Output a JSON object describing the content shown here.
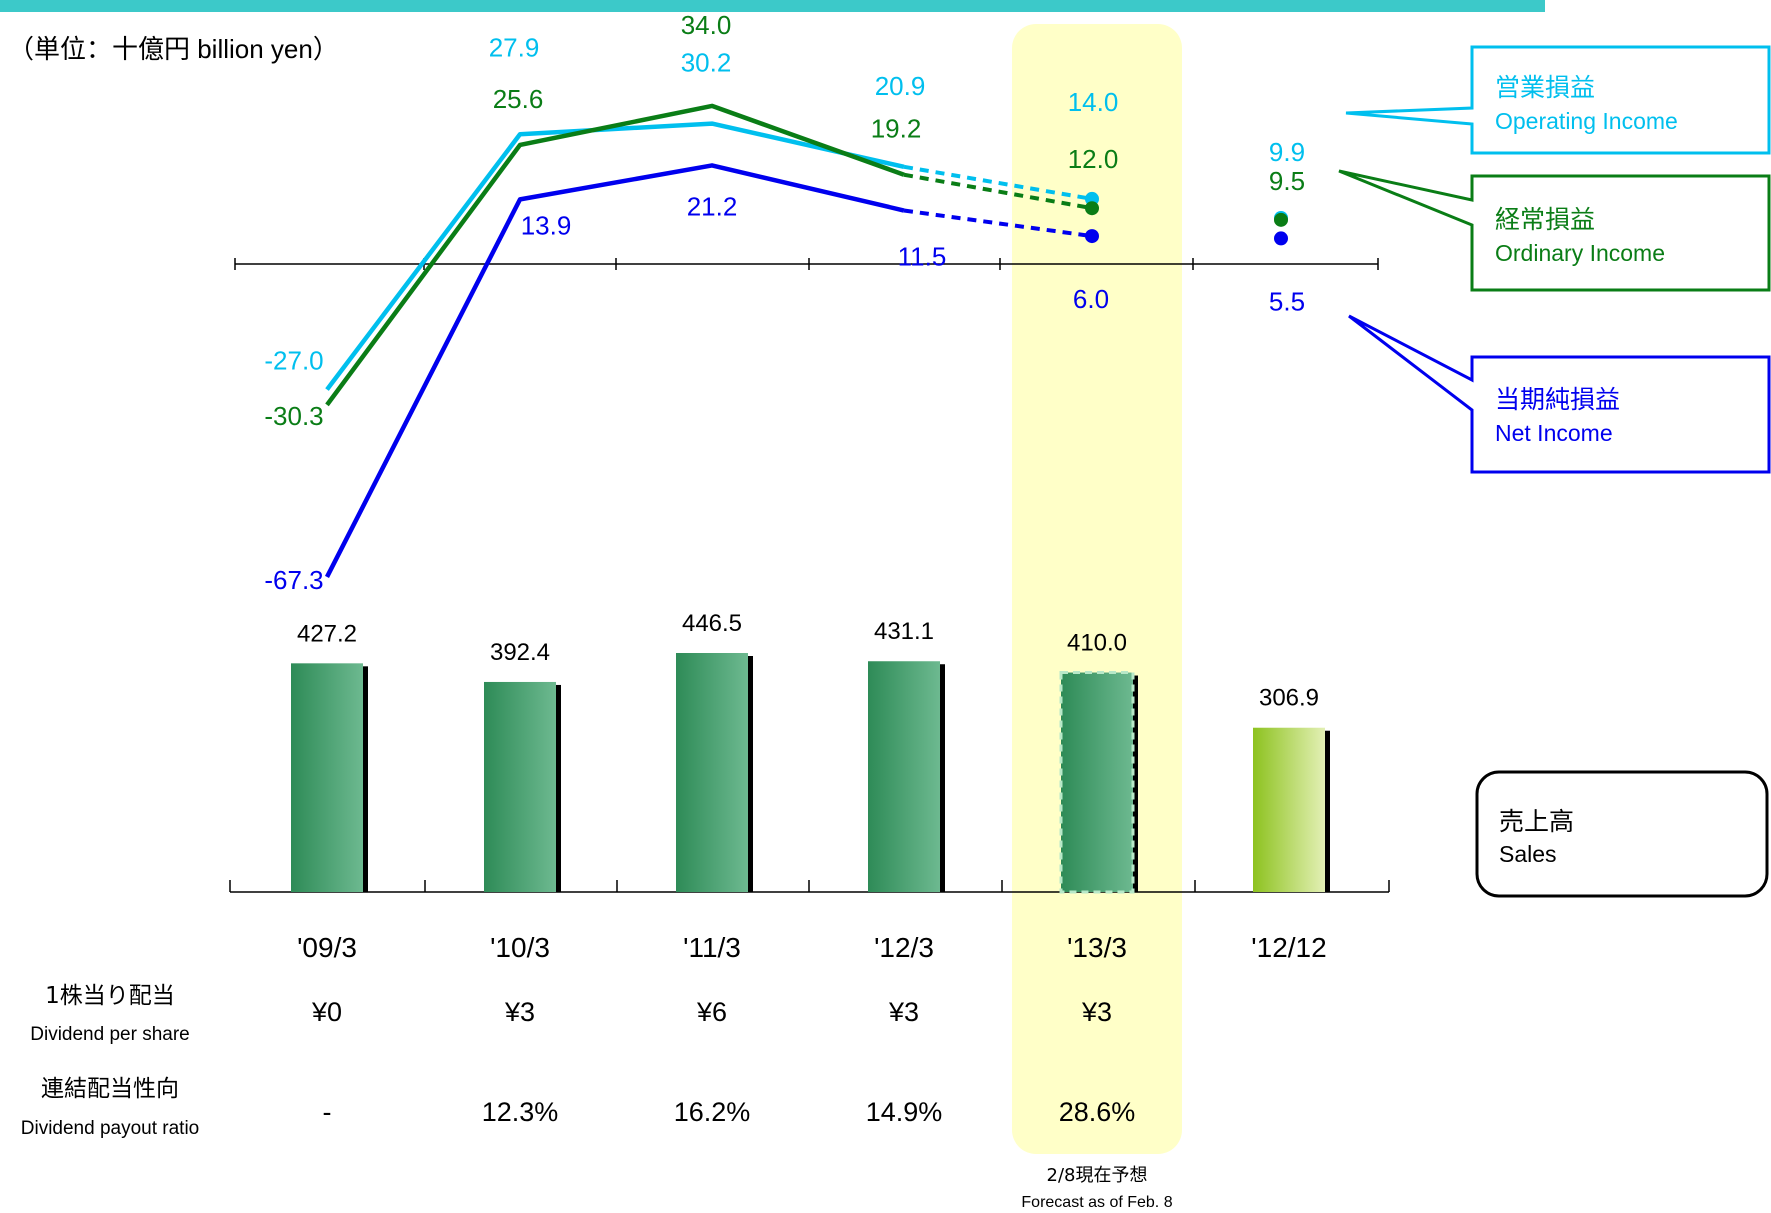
{
  "unit_label": "（単位：十億円 billion yen）",
  "forecast_note": {
    "jp": "2/8現在予想",
    "en": "Forecast as of Feb. 8"
  },
  "colors": {
    "top_bar": "#3cc9c9",
    "operating": "#00bfee",
    "ordinary": "#0a7d16",
    "net": "#0000ee",
    "sales_bar_dark": "#2e8b57",
    "sales_bar_light": "#6db990",
    "sales_bar_alt_dark": "#8dc21f",
    "sales_bar_alt_light": "#e3f0b5",
    "forecast_highlight": "#ffffc8"
  },
  "legend": {
    "operating": {
      "jp": "営業損益",
      "en": "Operating Income"
    },
    "ordinary": {
      "jp": "経常損益",
      "en": "Ordinary Income"
    },
    "net": {
      "jp": "当期純損益",
      "en": "Net Income"
    },
    "sales": {
      "jp": "売上高",
      "en": "Sales"
    }
  },
  "chart_data": [
    {
      "type": "line",
      "title": "",
      "categories": [
        "'09/3",
        "'10/3",
        "'11/3",
        "'12/3",
        "'13/3",
        "'12/12"
      ],
      "series": [
        {
          "name": "Operating Income",
          "key": "operating",
          "values": [
            -27.0,
            27.9,
            30.2,
            20.9,
            14.0,
            9.9
          ],
          "labels": [
            "-27.0",
            "27.9",
            "30.2",
            "20.9",
            "14.0",
            "9.9"
          ]
        },
        {
          "name": "Ordinary Income",
          "key": "ordinary",
          "values": [
            -30.3,
            25.6,
            34.0,
            19.2,
            12.0,
            9.5
          ],
          "labels": [
            "-30.3",
            "25.6",
            "34.0",
            "19.2",
            "12.0",
            "9.5"
          ]
        },
        {
          "name": "Net Income",
          "key": "net",
          "values": [
            -67.3,
            13.9,
            21.2,
            11.5,
            6.0,
            5.5
          ],
          "labels": [
            "-67.3",
            "13.9",
            "21.2",
            "11.5",
            "6.0",
            "5.5"
          ]
        }
      ],
      "forecast_category": "'13/3",
      "separate_period_category": "'12/12"
    },
    {
      "type": "bar",
      "title": "",
      "categories": [
        "'09/3",
        "'10/3",
        "'11/3",
        "'12/3",
        "'13/3",
        "'12/12"
      ],
      "values": [
        427.2,
        392.4,
        446.5,
        431.1,
        410.0,
        306.9
      ],
      "labels": [
        "427.2",
        "392.4",
        "446.5",
        "431.1",
        "410.0",
        "306.9"
      ],
      "forecast_category": "'13/3",
      "separate_period_category": "'12/12"
    },
    {
      "type": "table",
      "rows": [
        {
          "jp": "1株当り配当",
          "en": "Dividend per share",
          "values": [
            "¥0",
            "¥3",
            "¥6",
            "¥3",
            "¥3",
            ""
          ]
        },
        {
          "jp": "連結配当性向",
          "en": "Dividend payout ratio",
          "values": [
            "-",
            "12.3%",
            "16.2%",
            "14.9%",
            "28.6%",
            ""
          ]
        }
      ]
    }
  ]
}
